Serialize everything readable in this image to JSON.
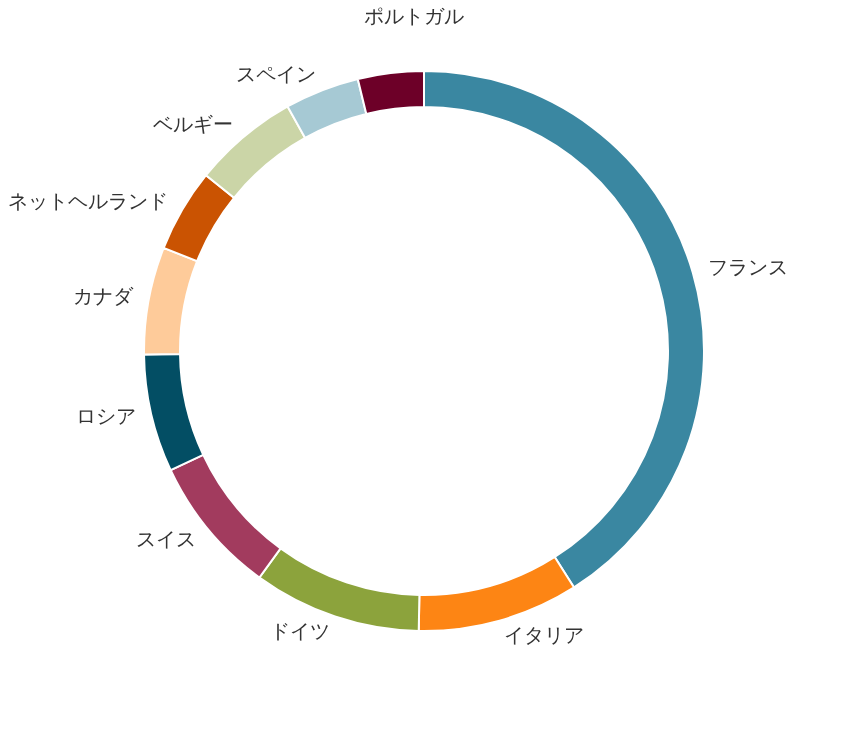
{
  "chart_data": {
    "type": "donut",
    "categories": [
      "フランス",
      "イタリア",
      "ドイツ",
      "スイス",
      "ロシア",
      "カナダ",
      "ネットヘルランド",
      "ベルギー",
      "スペイン",
      "ポルトガル"
    ],
    "values": [
      41,
      9.3,
      9.7,
      8,
      6.8,
      6.2,
      4.8,
      6.1,
      4.3,
      3.8
    ],
    "colors": [
      "#3a87a1",
      "#fd8514",
      "#8ca33c",
      "#a23b5e",
      "#034e64",
      "#fecb9a",
      "#ca5302",
      "#cbd5a7",
      "#a6c9d4",
      "#6d0028"
    ]
  }
}
